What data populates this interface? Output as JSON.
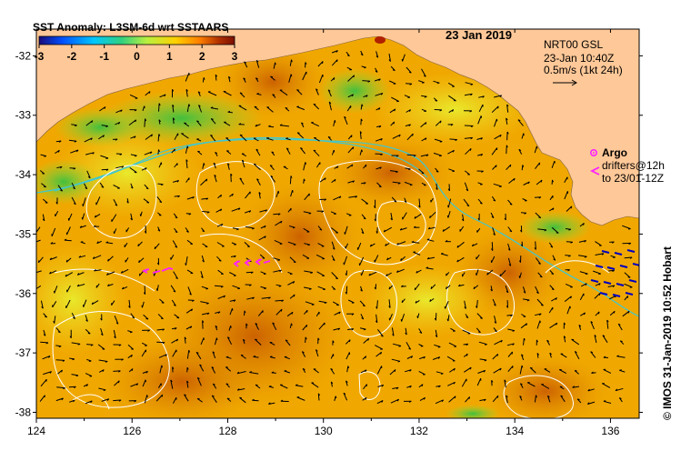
{
  "title": "SST Anomaly: L3SM-6d wrt SSTAARS",
  "date": "23 Jan 2019",
  "colorbar": {
    "ticks": [
      "-3",
      "-2",
      "-1",
      "0",
      "1",
      "2",
      "3"
    ],
    "colors": [
      "#1a0a7a",
      "#0050ff",
      "#00c8ff",
      "#30d080",
      "#b8f040",
      "#ffd000",
      "#ff8000",
      "#b03000",
      "#7a1000"
    ]
  },
  "current_info": {
    "line1": "NRT00 GSL",
    "line2": "23-Jan 10:40Z",
    "line3": "0.5m/s (1kt 24h)"
  },
  "legend": {
    "argo_label": "Argo",
    "argo_color": "#ff20ff",
    "drifters_line1": "drifters@12h",
    "drifters_line2": "to 23/01-12Z",
    "drifter_color": "#ff20ff"
  },
  "side_label": "© IMOS 31-Jan-2019 10:52 Hobart",
  "axes": {
    "x_ticks": [
      "124",
      "126",
      "128",
      "130",
      "132",
      "134",
      "136"
    ],
    "y_ticks": [
      "-32",
      "-33",
      "-34",
      "-35",
      "-36",
      "-37",
      "-38"
    ],
    "x_range": [
      124,
      136.6
    ],
    "y_range": [
      -38.1,
      -31.55
    ]
  },
  "colors": {
    "land": "#ffc898",
    "contour": "#ffffff",
    "sla_contour": "#40c8d0",
    "arrow": "#000000",
    "blue_arrow": "#0000c0"
  }
}
